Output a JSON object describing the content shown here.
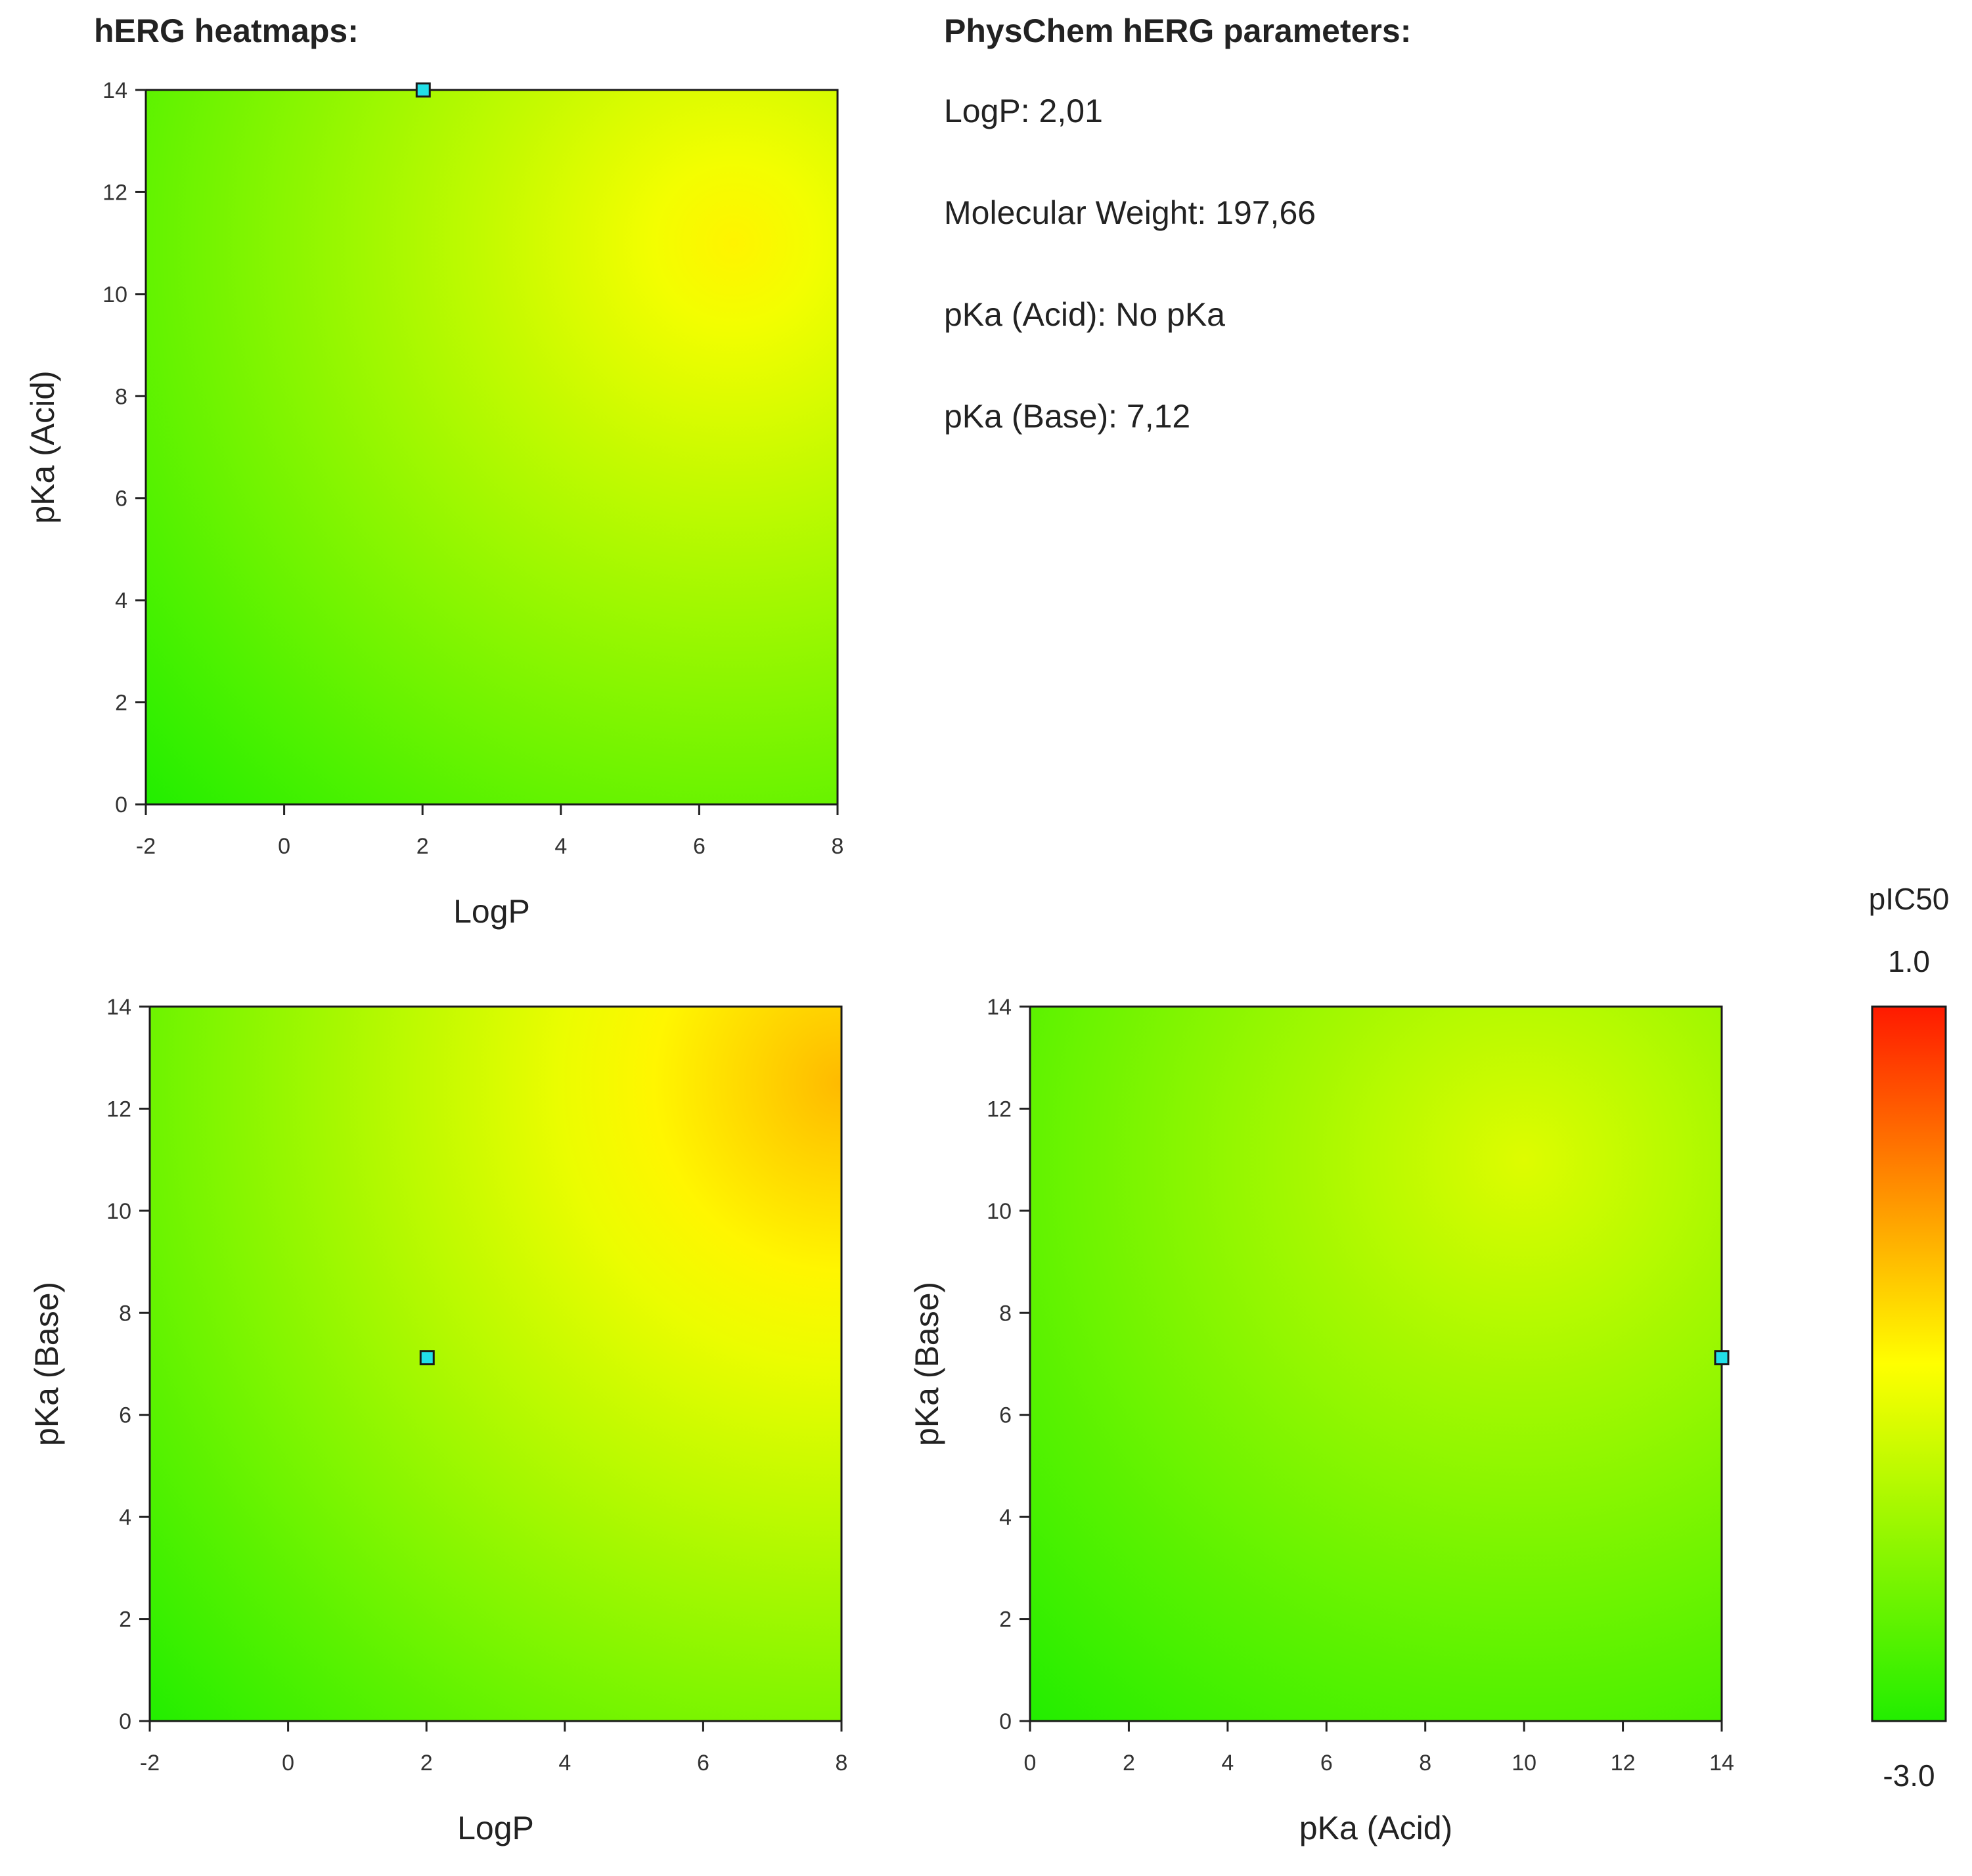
{
  "headings": {
    "heatmaps": "hERG heatmaps:",
    "params": "PhysChem hERG parameters:"
  },
  "params": [
    "LogP: 2,01",
    "Molecular Weight: 197,66",
    "pKa (Acid): No pKa",
    "pKa (Base): 7,12"
  ],
  "colors": {
    "low": "#22ee00",
    "mid": "#ffff00",
    "high": "#ff1a00",
    "marker": "#22e0e8"
  },
  "colorbar": {
    "title": "pIC50",
    "max": 1.0,
    "min": -3.0,
    "max_label": "1.0",
    "min_label": "-3.0"
  },
  "chart_data": [
    {
      "type": "heatmap",
      "title": "",
      "xlabel": "LogP",
      "ylabel": "pKa (Acid)",
      "xlim": [
        -2,
        8
      ],
      "ylim": [
        0,
        14
      ],
      "xticks": [
        "-2",
        "0",
        "2",
        "4",
        "6",
        "8"
      ],
      "yticks": [
        "0",
        "2",
        "4",
        "6",
        "8",
        "10",
        "12",
        "14"
      ],
      "hotspot": [
        6.5,
        11
      ],
      "value_corner_low": -3.0,
      "value_peak": -0.9,
      "point": [
        2.01,
        14
      ]
    },
    {
      "type": "heatmap",
      "title": "",
      "xlabel": "LogP",
      "ylabel": "pKa (Base)",
      "xlim": [
        -2,
        8
      ],
      "ylim": [
        0,
        14
      ],
      "xticks": [
        "-2",
        "0",
        "2",
        "4",
        "6",
        "8"
      ],
      "yticks": [
        "0",
        "2",
        "4",
        "6",
        "8",
        "10",
        "12",
        "14"
      ],
      "hotspot": [
        8,
        12.5
      ],
      "value_corner_low": -3.0,
      "value_peak": -0.4,
      "point": [
        2.01,
        7.12
      ]
    },
    {
      "type": "heatmap",
      "title": "",
      "xlabel": "pKa (Acid)",
      "ylabel": "pKa (Base)",
      "xlim": [
        0,
        14
      ],
      "ylim": [
        0,
        14
      ],
      "xticks": [
        "0",
        "2",
        "4",
        "6",
        "8",
        "10",
        "12",
        "14"
      ],
      "yticks": [
        "0",
        "2",
        "4",
        "6",
        "8",
        "10",
        "12",
        "14"
      ],
      "hotspot": [
        10,
        11
      ],
      "value_corner_low": -3.0,
      "value_peak": -1.3,
      "point": [
        14,
        7.12
      ]
    }
  ]
}
